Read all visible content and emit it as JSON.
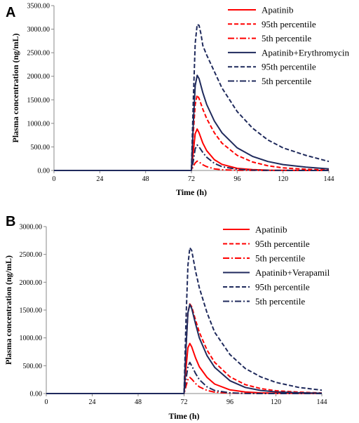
{
  "chart_data": [
    {
      "panel": "A",
      "type": "line",
      "xlabel": "Time (h)",
      "ylabel": "Plasma concentration (ng/mL)",
      "xlim": [
        0,
        144
      ],
      "ylim": [
        0,
        3500
      ],
      "x_ticks": [
        "0",
        "24",
        "48",
        "72",
        "96",
        "120",
        "144"
      ],
      "y_ticks": [
        "0.00",
        "500.00",
        "1000.00",
        "1500.00",
        "2000.00",
        "2500.00",
        "3000.00",
        "3500.00"
      ],
      "grid": false,
      "legend": "top-right",
      "series": [
        {
          "name": "Apatinib",
          "color": "#ff0000",
          "dash": "solid",
          "x": [
            0,
            72,
            73,
            74,
            75,
            76,
            78,
            80,
            84,
            88,
            96,
            104,
            112,
            120,
            132,
            144
          ],
          "y": [
            0,
            0,
            400,
            780,
            880,
            800,
            580,
            420,
            230,
            130,
            45,
            18,
            8,
            4,
            2,
            1
          ]
        },
        {
          "name": "95th percentile",
          "color": "#ff0000",
          "dash": "dash",
          "x": [
            0,
            72,
            73,
            74,
            75,
            76,
            78,
            80,
            84,
            88,
            96,
            104,
            112,
            120,
            132,
            144
          ],
          "y": [
            0,
            0,
            800,
            1400,
            1600,
            1530,
            1300,
            1100,
            800,
            580,
            320,
            180,
            100,
            55,
            25,
            10
          ]
        },
        {
          "name": "5th percentile",
          "color": "#ff0000",
          "dash": "dashdot",
          "x": [
            0,
            72,
            73,
            74,
            75,
            76,
            78,
            80,
            84,
            88,
            96,
            104,
            112,
            120,
            132,
            144
          ],
          "y": [
            0,
            0,
            90,
            160,
            200,
            180,
            120,
            80,
            35,
            15,
            4,
            1,
            0,
            0,
            0,
            0
          ]
        },
        {
          "name": "Apatinib+Erythromycin",
          "color": "#1f2a5c",
          "dash": "solid",
          "x": [
            0,
            72,
            73,
            74,
            75,
            76,
            78,
            80,
            84,
            88,
            96,
            104,
            112,
            120,
            132,
            144
          ],
          "y": [
            0,
            0,
            1000,
            1800,
            2020,
            1950,
            1650,
            1400,
            1050,
            800,
            480,
            300,
            190,
            125,
            70,
            35
          ]
        },
        {
          "name": "95th percentile",
          "color": "#1f2a5c",
          "dash": "dash",
          "x": [
            0,
            72,
            73,
            74,
            75,
            76,
            77,
            78,
            80,
            84,
            88,
            96,
            104,
            112,
            120,
            132,
            144
          ],
          "y": [
            0,
            0,
            1500,
            2700,
            3100,
            3080,
            2900,
            2650,
            2450,
            2100,
            1750,
            1250,
            900,
            650,
            480,
            320,
            190
          ]
        },
        {
          "name": "5th percentile",
          "color": "#1f2a5c",
          "dash": "dashdot",
          "x": [
            0,
            72,
            73,
            74,
            75,
            76,
            78,
            80,
            84,
            88,
            96,
            104,
            112,
            120,
            132,
            144
          ],
          "y": [
            0,
            0,
            200,
            460,
            540,
            500,
            380,
            280,
            150,
            80,
            25,
            8,
            3,
            1,
            0,
            0
          ]
        }
      ]
    },
    {
      "panel": "B",
      "type": "line",
      "xlabel": "Time (h)",
      "ylabel": "Plasma concentration (ng/mL)",
      "xlim": [
        0,
        144
      ],
      "ylim": [
        0,
        3000
      ],
      "x_ticks": [
        "0",
        "24",
        "48",
        "72",
        "96",
        "120",
        "144"
      ],
      "y_ticks": [
        "0.00",
        "500.00",
        "1000.00",
        "1500.00",
        "2000.00",
        "2500.00",
        "3000.00"
      ],
      "grid": false,
      "legend": "top-right",
      "series": [
        {
          "name": "Apatinib",
          "color": "#ff0000",
          "dash": "solid",
          "x": [
            0,
            72,
            73,
            74,
            75,
            76,
            78,
            80,
            84,
            88,
            96,
            104,
            112,
            120,
            132,
            144
          ],
          "y": [
            0,
            0,
            450,
            820,
            900,
            840,
            640,
            480,
            290,
            170,
            65,
            28,
            12,
            6,
            3,
            1
          ]
        },
        {
          "name": "95th percentile",
          "color": "#ff0000",
          "dash": "dash",
          "x": [
            0,
            72,
            73,
            74,
            75,
            76,
            78,
            80,
            84,
            88,
            96,
            104,
            112,
            120,
            132,
            144
          ],
          "y": [
            0,
            0,
            800,
            1450,
            1610,
            1560,
            1320,
            1100,
            780,
            560,
            300,
            160,
            90,
            50,
            25,
            10
          ]
        },
        {
          "name": "5th percentile",
          "color": "#ff0000",
          "dash": "dashdot",
          "x": [
            0,
            72,
            73,
            74,
            75,
            76,
            78,
            80,
            84,
            88,
            96,
            104,
            112,
            120,
            132,
            144
          ],
          "y": [
            0,
            0,
            130,
            250,
            290,
            260,
            180,
            120,
            55,
            25,
            6,
            2,
            0,
            0,
            0,
            0
          ]
        },
        {
          "name": "Apatinib+Verapamil",
          "color": "#1f2a5c",
          "dash": "solid",
          "x": [
            0,
            72,
            73,
            74,
            75,
            76,
            78,
            80,
            84,
            88,
            96,
            104,
            112,
            120,
            132,
            144
          ],
          "y": [
            0,
            0,
            800,
            1450,
            1600,
            1530,
            1250,
            1000,
            680,
            470,
            230,
            110,
            55,
            30,
            14,
            6
          ]
        },
        {
          "name": "95th percentile",
          "color": "#1f2a5c",
          "dash": "dash",
          "x": [
            0,
            72,
            73,
            74,
            75,
            76,
            78,
            80,
            84,
            88,
            96,
            104,
            112,
            120,
            132,
            144
          ],
          "y": [
            0,
            0,
            1300,
            2300,
            2620,
            2570,
            2200,
            1900,
            1450,
            1100,
            700,
            450,
            300,
            200,
            110,
            60
          ]
        },
        {
          "name": "5th percentile",
          "color": "#1f2a5c",
          "dash": "dashdot",
          "x": [
            0,
            72,
            73,
            74,
            75,
            76,
            78,
            80,
            84,
            88,
            96,
            104,
            112,
            120,
            132,
            144
          ],
          "y": [
            0,
            0,
            250,
            480,
            560,
            500,
            360,
            250,
            120,
            55,
            12,
            3,
            1,
            0,
            0,
            0
          ]
        }
      ]
    }
  ]
}
